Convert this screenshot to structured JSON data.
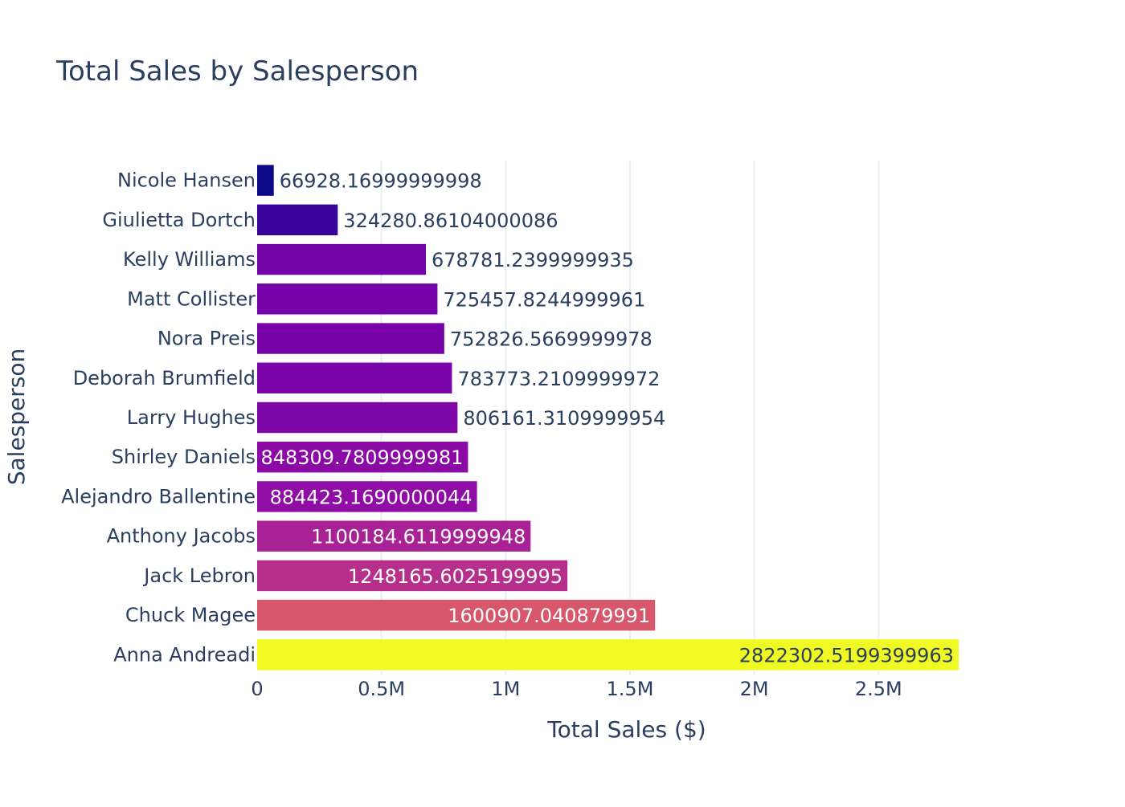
{
  "chart_data": {
    "type": "bar",
    "orientation": "horizontal",
    "title": "Total Sales by Salesperson",
    "xlabel": "Total Sales ($)",
    "ylabel": "Salesperson",
    "xlim": [
      0,
      2822302.5199399963
    ],
    "grid": true,
    "x_ticks": [
      {
        "value": 0,
        "label": "0"
      },
      {
        "value": 500000,
        "label": "0.5M"
      },
      {
        "value": 1000000,
        "label": "1M"
      },
      {
        "value": 1500000,
        "label": "1.5M"
      },
      {
        "value": 2000000,
        "label": "2M"
      },
      {
        "value": 2500000,
        "label": "2.5M"
      }
    ],
    "categories": [
      "Nicole Hansen",
      "Giulietta Dortch",
      "Kelly Williams",
      "Matt Collister",
      "Nora Preis",
      "Deborah Brumfield",
      "Larry Hughes",
      "Shirley Daniels",
      "Alejandro Ballentine",
      "Anthony Jacobs",
      "Jack Lebron",
      "Chuck Magee",
      "Anna Andreadi"
    ],
    "values": [
      66928.16999999998,
      324280.86104000086,
      678781.2399999935,
      725457.8244999961,
      752826.5669999978,
      783773.2109999972,
      806161.3109999954,
      848309.7809999981,
      884423.1690000044,
      1100184.6119999948,
      1248165.6025199995,
      1600907.040879991,
      2822302.5199399963
    ],
    "value_labels": [
      "66928.16999999998",
      "324280.86104000086",
      "678781.2399999935",
      "725457.8244999961",
      "752826.5669999978",
      "783773.2109999972",
      "806161.3109999954",
      "848309.7809999981",
      "884423.1690000044",
      "1100184.6119999948",
      "1248165.6025199995",
      "1600907.040879991",
      "2822302.5199399963"
    ],
    "colors": [
      "#0d0887",
      "#3a049a",
      "#7201a8",
      "#7402a8",
      "#7703a8",
      "#7904a8",
      "#7d07a7",
      "#8b0aa5",
      "#8f0da4",
      "#a82296",
      "#b6308b",
      "#d8576b",
      "#f0f921"
    ],
    "label_colors_inside": "#ffffff",
    "label_color_outside": "#2a3f5f",
    "label_color_light_bar": "#2a3f5f"
  }
}
